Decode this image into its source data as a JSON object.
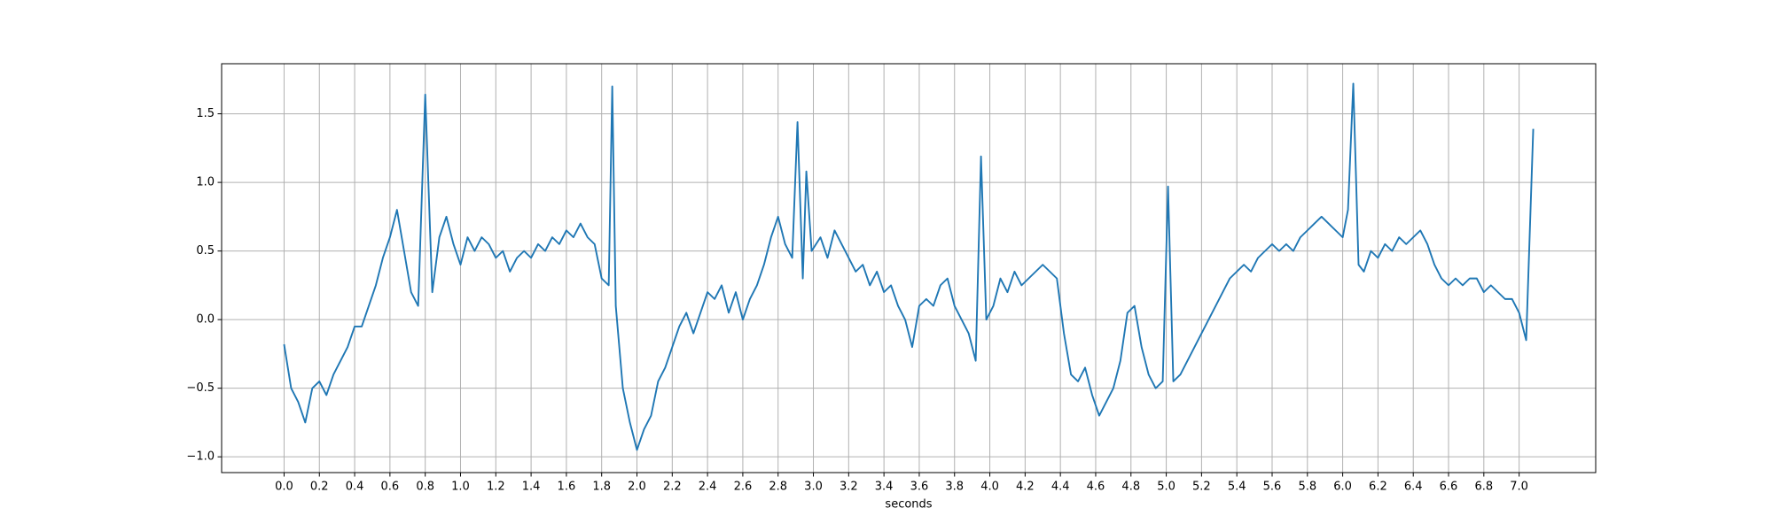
{
  "chart_data": {
    "type": "line",
    "xlabel": "seconds",
    "color": "#1f77b4",
    "grid": true,
    "xlim": [
      -0.354,
      7.434
    ],
    "ylim": [
      -1.115,
      1.865
    ],
    "xticks": [
      {
        "value": 0,
        "label": "0.0"
      },
      0.2,
      0.4,
      0.6,
      0.8,
      {
        "value": 1,
        "label": "1.0"
      },
      1.2,
      1.4,
      1.6,
      1.8,
      {
        "value": 2,
        "label": "2.0"
      },
      2.2,
      2.4,
      2.6,
      2.8,
      {
        "value": 3,
        "label": "3.0"
      },
      3.2,
      3.4,
      3.6,
      3.8,
      {
        "value": 4,
        "label": "4.0"
      },
      4.2,
      4.4,
      4.6,
      4.8,
      {
        "value": 5,
        "label": "5.0"
      },
      5.2,
      5.4,
      5.6,
      5.8,
      {
        "value": 6,
        "label": "6.0"
      },
      6.2,
      6.4,
      6.6,
      6.8,
      {
        "value": 7,
        "label": "7.0"
      }
    ],
    "yticks": [
      {
        "value": -1,
        "label": "−1.0"
      },
      {
        "value": -0.5,
        "label": "−0.5"
      },
      {
        "value": 0,
        "label": "0.0"
      },
      0.5,
      {
        "value": 1,
        "label": "1.0"
      },
      1.5
    ],
    "x": [
      0,
      0.04,
      0.08,
      0.12,
      0.16,
      0.2,
      0.24,
      0.28,
      0.32,
      0.36,
      0.4,
      0.44,
      0.48,
      0.52,
      0.56,
      0.6,
      0.64,
      0.68,
      0.72,
      0.76,
      0.8,
      0.84,
      0.88,
      0.92,
      0.96,
      1,
      1.04,
      1.08,
      1.12,
      1.16,
      1.2,
      1.24,
      1.28,
      1.32,
      1.36,
      1.4,
      1.44,
      1.48,
      1.52,
      1.56,
      1.6,
      1.64,
      1.68,
      1.72,
      1.76,
      1.8,
      1.84,
      1.86,
      1.88,
      1.92,
      1.96,
      2,
      2.04,
      2.08,
      2.12,
      2.16,
      2.2,
      2.24,
      2.28,
      2.32,
      2.36,
      2.4,
      2.44,
      2.48,
      2.52,
      2.56,
      2.6,
      2.64,
      2.68,
      2.72,
      2.76,
      2.8,
      2.84,
      2.88,
      2.91,
      2.94,
      2.96,
      2.99,
      3.04,
      3.08,
      3.12,
      3.16,
      3.2,
      3.24,
      3.28,
      3.32,
      3.36,
      3.4,
      3.44,
      3.48,
      3.52,
      3.56,
      3.6,
      3.64,
      3.68,
      3.72,
      3.76,
      3.8,
      3.84,
      3.88,
      3.92,
      3.95,
      3.98,
      4.02,
      4.06,
      4.1,
      4.14,
      4.18,
      4.22,
      4.26,
      4.3,
      4.34,
      4.38,
      4.42,
      4.46,
      4.5,
      4.54,
      4.58,
      4.62,
      4.66,
      4.7,
      4.74,
      4.78,
      4.82,
      4.86,
      4.9,
      4.94,
      4.98,
      5.01,
      5.04,
      5.08,
      5.12,
      5.16,
      5.2,
      5.24,
      5.28,
      5.32,
      5.36,
      5.4,
      5.44,
      5.48,
      5.52,
      5.56,
      5.6,
      5.64,
      5.68,
      5.72,
      5.76,
      5.8,
      5.84,
      5.88,
      5.92,
      5.96,
      6,
      6.03,
      6.06,
      6.09,
      6.12,
      6.16,
      6.2,
      6.24,
      6.28,
      6.32,
      6.36,
      6.4,
      6.44,
      6.48,
      6.52,
      6.56,
      6.6,
      6.64,
      6.68,
      6.72,
      6.76,
      6.8,
      6.84,
      6.88,
      6.92,
      6.96,
      7,
      7.04,
      7.08
    ],
    "values": [
      -0.18,
      -0.5,
      -0.6,
      -0.75,
      -0.5,
      -0.45,
      -0.55,
      -0.4,
      -0.3,
      -0.2,
      -0.05,
      -0.05,
      0.1,
      0.25,
      0.45,
      0.6,
      0.8,
      0.5,
      0.2,
      0.1,
      1.64,
      0.2,
      0.6,
      0.75,
      0.55,
      0.4,
      0.6,
      0.5,
      0.6,
      0.55,
      0.45,
      0.5,
      0.35,
      0.45,
      0.5,
      0.45,
      0.55,
      0.5,
      0.6,
      0.55,
      0.65,
      0.6,
      0.7,
      0.6,
      0.55,
      0.3,
      0.25,
      1.7,
      0.1,
      -0.5,
      -0.75,
      -0.95,
      -0.8,
      -0.7,
      -0.45,
      -0.35,
      -0.2,
      -0.05,
      0.05,
      -0.1,
      0.05,
      0.2,
      0.15,
      0.25,
      0.05,
      0.2,
      0,
      0.15,
      0.25,
      0.4,
      0.6,
      0.75,
      0.55,
      0.45,
      1.44,
      0.3,
      1.08,
      0.5,
      0.6,
      0.45,
      0.65,
      0.55,
      0.45,
      0.35,
      0.4,
      0.25,
      0.35,
      0.2,
      0.25,
      0.1,
      0,
      -0.2,
      0.1,
      0.15,
      0.1,
      0.25,
      0.3,
      0.1,
      0,
      -0.1,
      -0.3,
      1.19,
      0,
      0.1,
      0.3,
      0.2,
      0.35,
      0.25,
      0.3,
      0.35,
      0.4,
      0.35,
      0.3,
      -0.1,
      -0.4,
      -0.45,
      -0.35,
      -0.55,
      -0.7,
      -0.6,
      -0.5,
      -0.3,
      0.05,
      0.1,
      -0.2,
      -0.4,
      -0.5,
      -0.45,
      0.97,
      -0.45,
      -0.4,
      -0.3,
      -0.2,
      -0.1,
      0,
      0.1,
      0.2,
      0.3,
      0.35,
      0.4,
      0.35,
      0.45,
      0.5,
      0.55,
      0.5,
      0.55,
      0.5,
      0.6,
      0.65,
      0.7,
      0.75,
      0.7,
      0.65,
      0.6,
      0.8,
      1.72,
      0.4,
      0.35,
      0.5,
      0.45,
      0.55,
      0.5,
      0.6,
      0.55,
      0.6,
      0.65,
      0.55,
      0.4,
      0.3,
      0.25,
      0.3,
      0.25,
      0.3,
      0.3,
      0.2,
      0.25,
      0.2,
      0.15,
      0.15,
      0.05,
      -0.15,
      1.39
    ]
  }
}
